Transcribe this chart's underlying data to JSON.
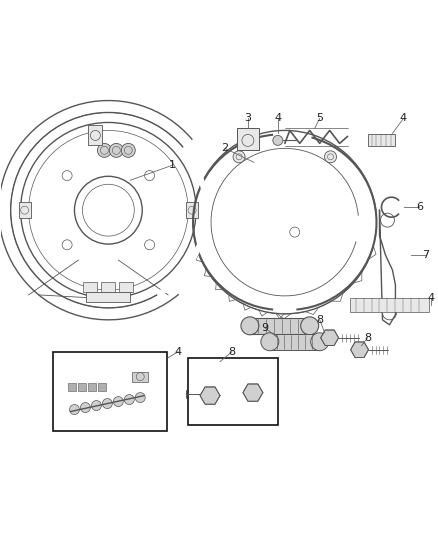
{
  "background_color": "#ffffff",
  "figsize": [
    4.38,
    5.33
  ],
  "dpi": 100,
  "line_color": "#555555",
  "thin_line": "#777777",
  "fill_light": "#e8e8e8",
  "fill_mid": "#d0d0d0",
  "fill_dark": "#b0b0b0",
  "callout_color": "#666666"
}
